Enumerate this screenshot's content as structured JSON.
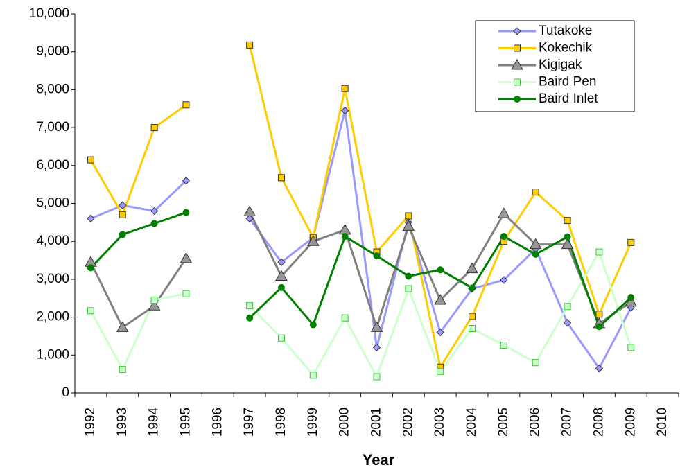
{
  "chart_data": {
    "type": "line",
    "x_label": "Year",
    "categories": [
      "1992",
      "1993",
      "1994",
      "1995",
      "1996",
      "1997",
      "1998",
      "1999",
      "2000",
      "2001",
      "2002",
      "2003",
      "2004",
      "2005",
      "2006",
      "2007",
      "2008",
      "2009",
      "2010"
    ],
    "ylim": [
      0,
      10000
    ],
    "yticks": [
      0,
      {
        "value": 1000,
        "label": "1,000"
      },
      {
        "value": 2000,
        "label": "2,000"
      },
      {
        "value": 3000,
        "label": "3,000"
      },
      {
        "value": 4000,
        "label": "4,000"
      },
      {
        "value": 5000,
        "label": "5,000"
      },
      {
        "value": 6000,
        "label": "6,000"
      },
      {
        "value": 7000,
        "label": "7,000"
      },
      {
        "value": 8000,
        "label": "8,000"
      },
      {
        "value": 9000,
        "label": "9,000"
      },
      {
        "value": 10000,
        "label": "10,000"
      }
    ],
    "grid": false,
    "legend": "top-right",
    "series": [
      {
        "name": "Tutakoke",
        "color": "#9999ff",
        "marker": "diamond",
        "marker_fill": "#9999ff",
        "values": [
          4600,
          4950,
          4800,
          5600,
          null,
          4600,
          3450,
          4100,
          7450,
          1200,
          4500,
          1600,
          2750,
          2980,
          3800,
          1850,
          650,
          2250,
          null
        ]
      },
      {
        "name": "Kokechik",
        "color": "#ffcc00",
        "marker": "square",
        "marker_fill": "#ffcc00",
        "values": [
          6150,
          4700,
          7000,
          7600,
          null,
          9180,
          5680,
          4100,
          8030,
          3720,
          4670,
          680,
          2020,
          4000,
          5300,
          4550,
          2080,
          3970,
          null
        ]
      },
      {
        "name": "Kigigak",
        "color": "#808080",
        "marker": "triangle",
        "marker_fill": "#969696",
        "values": [
          3450,
          1730,
          2300,
          3550,
          null,
          4780,
          3080,
          4000,
          4300,
          1730,
          4400,
          2450,
          3280,
          4730,
          3920,
          3920,
          1830,
          2400,
          null
        ]
      },
      {
        "name": "Baird Pen",
        "color": "#ccffcc",
        "marker": "square",
        "marker_fill": "#ccffcc",
        "marker_edge": "#33cc33",
        "values": [
          2170,
          620,
          2450,
          2620,
          null,
          2300,
          1450,
          470,
          1980,
          430,
          2750,
          570,
          1700,
          1260,
          800,
          2280,
          3720,
          1200,
          null
        ]
      },
      {
        "name": "Baird Inlet",
        "color": "#008000",
        "marker": "circle",
        "marker_fill": "#008000",
        "values": [
          3300,
          4180,
          4470,
          4760,
          null,
          1980,
          2780,
          1800,
          4130,
          3620,
          3080,
          3250,
          2770,
          4130,
          3660,
          4120,
          1750,
          2520,
          null
        ]
      }
    ]
  }
}
